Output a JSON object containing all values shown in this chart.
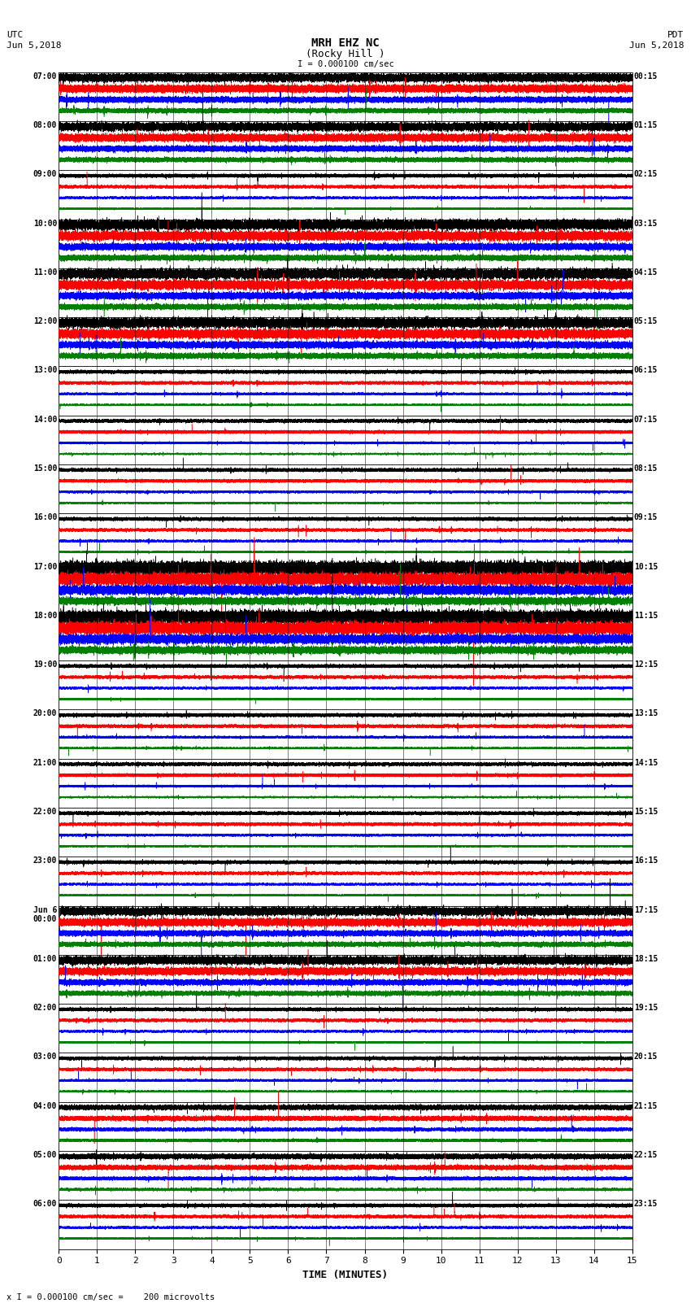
{
  "title_line1": "MRH EHZ NC",
  "title_line2": "(Rocky Hill )",
  "scale_label": "I = 0.000100 cm/sec",
  "utc_label": "UTC\nJun 5,2018",
  "pdt_label": "PDT\nJun 5,2018",
  "bottom_label": "x I = 0.000100 cm/sec =    200 microvolts",
  "xlabel": "TIME (MINUTES)",
  "left_times_utc": [
    "07:00",
    "08:00",
    "09:00",
    "10:00",
    "11:00",
    "12:00",
    "13:00",
    "14:00",
    "15:00",
    "16:00",
    "17:00",
    "18:00",
    "19:00",
    "20:00",
    "21:00",
    "22:00",
    "23:00",
    "Jun 6\n00:00",
    "01:00",
    "02:00",
    "03:00",
    "04:00",
    "05:00",
    "06:00"
  ],
  "right_times_pdt": [
    "00:15",
    "01:15",
    "02:15",
    "03:15",
    "04:15",
    "05:15",
    "06:15",
    "07:15",
    "08:15",
    "09:15",
    "10:15",
    "11:15",
    "12:15",
    "13:15",
    "14:15",
    "15:15",
    "16:15",
    "17:15",
    "18:15",
    "19:15",
    "20:15",
    "21:15",
    "22:15",
    "23:15"
  ],
  "num_rows": 24,
  "minutes_per_row": 15,
  "traces_per_row": 4,
  "trace_colors": [
    "black",
    "red",
    "blue",
    "green"
  ],
  "background_color": "white",
  "line_width": 0.35,
  "noise_amplitude": 0.025,
  "event_amplitude": 0.12,
  "sample_rate": 100
}
